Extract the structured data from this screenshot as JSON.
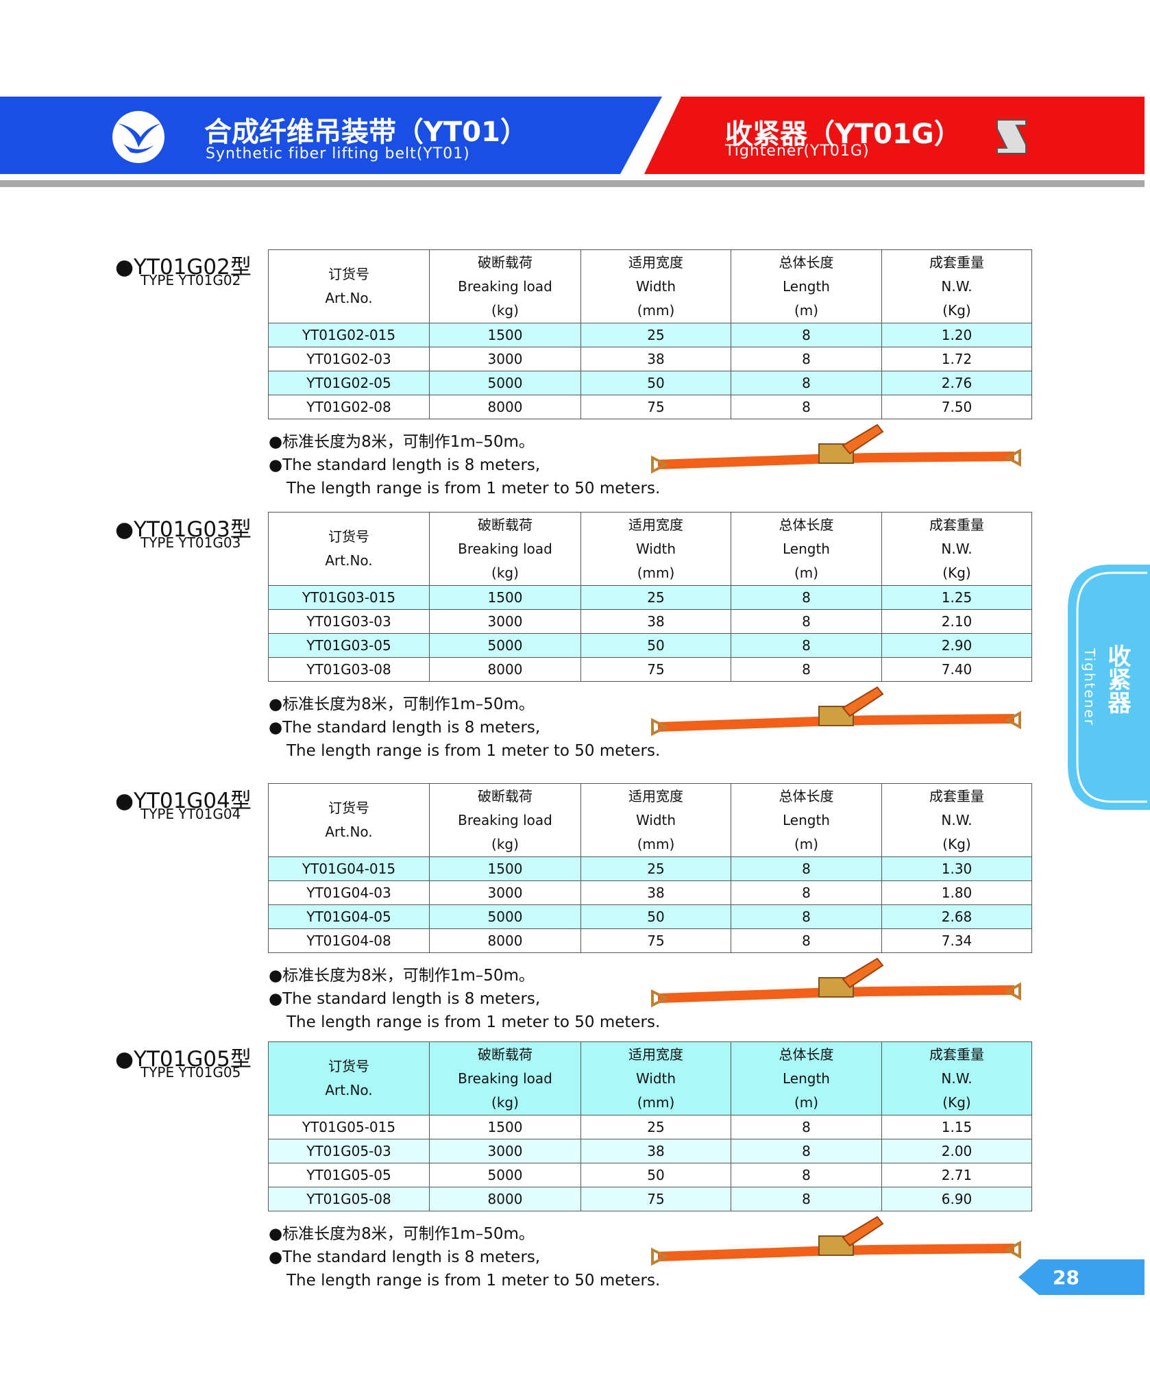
{
  "header": {
    "left_title": "合成纤维吊装带（YT01）",
    "left_subtitle": "Synthetic fiber lifting belt(YT01)",
    "right_title": "收紧器（YT01G）",
    "right_subtitle": "Tightener(YT01G)"
  },
  "side_tab": {
    "title": "收紧器",
    "subtitle": "Tightener"
  },
  "page_number": "28",
  "columns": [
    [
      "订货号",
      "Art.No."
    ],
    [
      "破断载荷",
      "Breaking load",
      "(kg)"
    ],
    [
      "适用宽度",
      "Width",
      "(mm)"
    ],
    [
      "总体长度",
      "Length",
      "(m)"
    ],
    [
      "成套重量",
      "N.W.",
      "(Kg)"
    ]
  ],
  "sections": [
    {
      "title": "●YT01G02型",
      "type": "TYPE YT01G02",
      "rows": [
        [
          "YT01G02-015",
          "1500",
          "25",
          "8",
          "1.20"
        ],
        [
          "YT01G02-03",
          "3000",
          "38",
          "8",
          "1.72"
        ],
        [
          "YT01G02-05",
          "5000",
          "50",
          "8",
          "2.76"
        ],
        [
          "YT01G02-08",
          "8000",
          "75",
          "8",
          "7.50"
        ]
      ],
      "notes": [
        "●标准长度为8米，可制作1m–50m。",
        "●The standard length is 8 meters,",
        "The length range is from 1 meter to 50 meters."
      ]
    },
    {
      "title": "●YT01G03型",
      "type": "TYPE YT01G03",
      "rows": [
        [
          "YT01G03-015",
          "1500",
          "25",
          "8",
          "1.25"
        ],
        [
          "YT01G03-03",
          "3000",
          "38",
          "8",
          "2.10"
        ],
        [
          "YT01G03-05",
          "5000",
          "50",
          "8",
          "2.90"
        ],
        [
          "YT01G03-08",
          "8000",
          "75",
          "8",
          "7.40"
        ]
      ],
      "notes": [
        "●标准长度为8米，可制作1m–50m。",
        "●The standard length is 8 meters,",
        "The length range is from 1 meter to 50 meters."
      ]
    },
    {
      "title": "●YT01G04型",
      "type": "TYPE YT01G04",
      "rows": [
        [
          "YT01G04-015",
          "1500",
          "25",
          "8",
          "1.30"
        ],
        [
          "YT01G04-03",
          "3000",
          "38",
          "8",
          "1.80"
        ],
        [
          "YT01G04-05",
          "5000",
          "50",
          "8",
          "2.68"
        ],
        [
          "YT01G04-08",
          "8000",
          "75",
          "8",
          "7.34"
        ]
      ],
      "notes": [
        "●标准长度为8米，可制作1m–50m。",
        "●The standard length is 8 meters,",
        "The length range is from 1 meter to 50 meters."
      ]
    },
    {
      "title": "●YT01G05型",
      "type": "TYPE YT01G05",
      "rows": [
        [
          "YT01G05-015",
          "1500",
          "25",
          "8",
          "1.15"
        ],
        [
          "YT01G05-03",
          "3000",
          "38",
          "8",
          "2.00"
        ],
        [
          "YT01G05-05",
          "5000",
          "50",
          "8",
          "2.71"
        ],
        [
          "YT01G05-08",
          "8000",
          "75",
          "8",
          "6.90"
        ]
      ],
      "notes": [
        "●标准长度为8米，可制作1m–50m。",
        "●The standard length is 8 meters,",
        "The length range is from 1 meter to 50 meters."
      ]
    }
  ]
}
